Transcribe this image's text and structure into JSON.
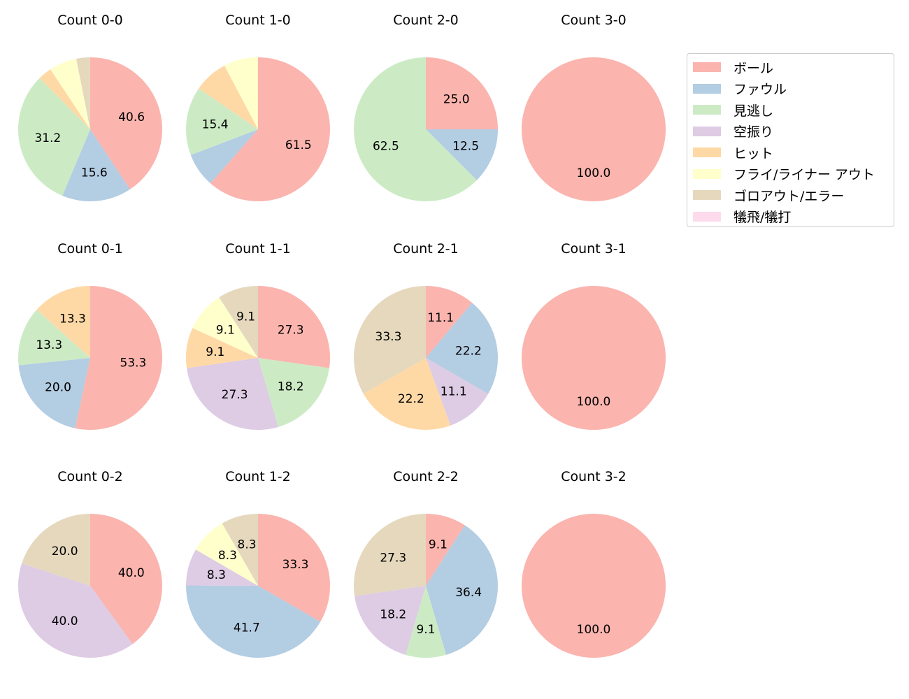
{
  "chart_data": {
    "type": "pie",
    "legend": {
      "placement": "top-right",
      "entries": [
        "ボール",
        "ファウル",
        "見逃し",
        "空振り",
        "ヒット",
        "フライ/ライナー アウト",
        "ゴロアウト/エラー",
        "犠飛/犠打"
      ],
      "colors": [
        "#fbb4ae",
        "#b3cde3",
        "#ccebc5",
        "#decbe4",
        "#fed9a6",
        "#ffffcc",
        "#e5d8bd",
        "#fddaec"
      ]
    },
    "charts": [
      {
        "title": "Count 0-0",
        "values": [
          40.6,
          15.6,
          31.2,
          0,
          3.1,
          6.2,
          3.1,
          0
        ],
        "labeled": [
          true,
          true,
          true,
          false,
          false,
          false,
          false,
          false
        ]
      },
      {
        "title": "Count 1-0",
        "values": [
          61.5,
          7.7,
          15.4,
          0,
          7.7,
          7.7,
          0,
          0
        ],
        "labeled": [
          true,
          false,
          true,
          false,
          false,
          false,
          false,
          false
        ]
      },
      {
        "title": "Count 2-0",
        "values": [
          25.0,
          12.5,
          62.5,
          0,
          0,
          0,
          0,
          0
        ],
        "labeled": [
          true,
          true,
          true,
          false,
          false,
          false,
          false,
          false
        ]
      },
      {
        "title": "Count 3-0",
        "values": [
          100.0,
          0,
          0,
          0,
          0,
          0,
          0,
          0
        ],
        "labeled": [
          true,
          false,
          false,
          false,
          false,
          false,
          false,
          false
        ]
      },
      {
        "title": "Count 0-1",
        "values": [
          53.3,
          20.0,
          13.3,
          0,
          13.3,
          0,
          0,
          0
        ],
        "labeled": [
          true,
          true,
          true,
          false,
          true,
          false,
          false,
          false
        ]
      },
      {
        "title": "Count 1-1",
        "values": [
          27.3,
          0,
          18.2,
          27.3,
          9.1,
          9.1,
          9.1,
          0
        ],
        "labeled": [
          true,
          false,
          true,
          true,
          true,
          true,
          true,
          false
        ]
      },
      {
        "title": "Count 2-1",
        "values": [
          11.1,
          22.2,
          0,
          11.1,
          22.2,
          0,
          33.3,
          0
        ],
        "labeled": [
          true,
          true,
          false,
          true,
          true,
          false,
          true,
          false
        ]
      },
      {
        "title": "Count 3-1",
        "values": [
          100.0,
          0,
          0,
          0,
          0,
          0,
          0,
          0
        ],
        "labeled": [
          true,
          false,
          false,
          false,
          false,
          false,
          false,
          false
        ]
      },
      {
        "title": "Count 0-2",
        "values": [
          40.0,
          0,
          0,
          40.0,
          0,
          0,
          20.0,
          0
        ],
        "labeled": [
          true,
          false,
          false,
          true,
          false,
          false,
          true,
          false
        ]
      },
      {
        "title": "Count 1-2",
        "values": [
          33.3,
          41.7,
          0,
          8.3,
          0,
          8.3,
          8.3,
          0
        ],
        "labeled": [
          true,
          true,
          false,
          true,
          false,
          true,
          true,
          false
        ]
      },
      {
        "title": "Count 2-2",
        "values": [
          9.1,
          36.4,
          9.1,
          18.2,
          0,
          0,
          27.3,
          0
        ],
        "labeled": [
          true,
          true,
          true,
          true,
          false,
          false,
          true,
          false
        ]
      },
      {
        "title": "Count 3-2",
        "values": [
          100.0,
          0,
          0,
          0,
          0,
          0,
          0,
          0
        ],
        "labeled": [
          true,
          false,
          false,
          false,
          false,
          false,
          false,
          false
        ]
      }
    ]
  }
}
